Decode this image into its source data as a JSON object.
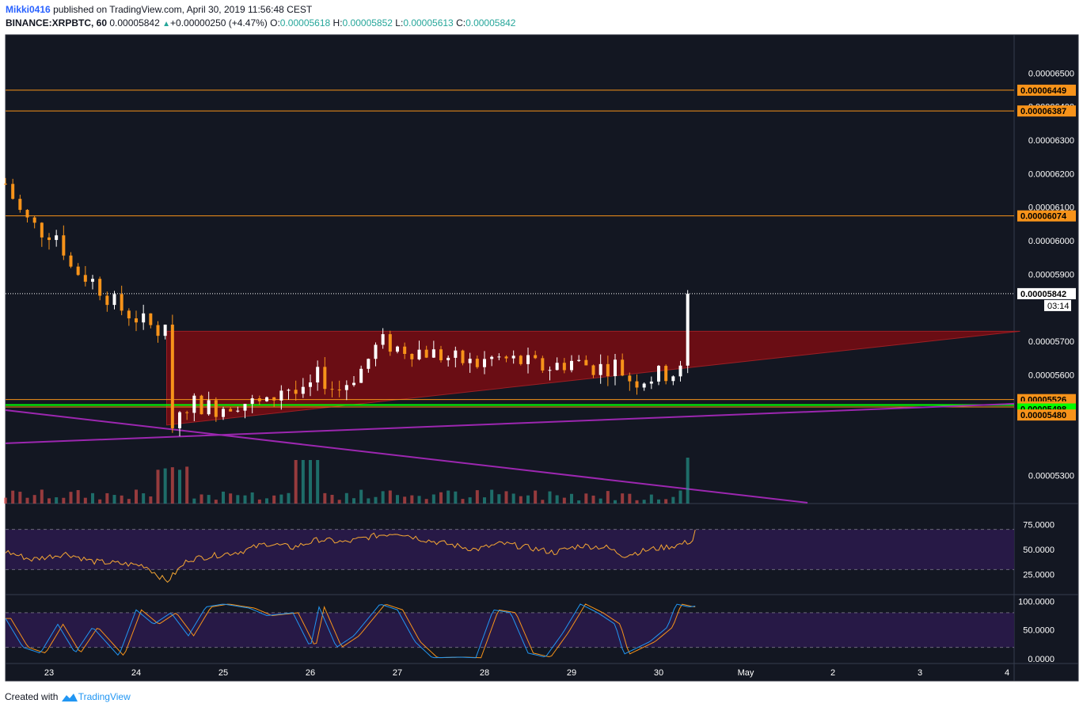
{
  "header": {
    "author": "Mikki0416",
    "published": "published on TradingView.com, April 30, 2019 11:56:48 CEST",
    "symbol": "BINANCE:XRPBTC, 60",
    "last": "0.00005842",
    "change": "+0.00000250 (+4.47%)",
    "o_label": "O:",
    "o_value": "0.00005618",
    "h_label": "H:",
    "h_value": "0.00005852",
    "l_label": "L:",
    "l_value": "0.00005613",
    "c_label": "C:",
    "c_value": "0.00005842"
  },
  "footer": {
    "created_with": "Created with",
    "brand": "TradingView"
  },
  "colors": {
    "background": "#131722",
    "up_candle": "#ffffff",
    "down_candle": "#f7931a",
    "resistance": "#f7931a",
    "support_green": "#00ff00",
    "trend_purple": "#9c27b0",
    "triangle_fill": "#7a0c12",
    "rsi_line": "#f7a833",
    "stoch_k": "#2196f3",
    "stoch_d": "#f7931a",
    "vol_up": "#26a69a",
    "vol_down": "#ef5350"
  },
  "chart_data": [
    {
      "type": "candlestick",
      "title": "BINANCE:XRPBTC, 60",
      "x_ticks": [
        "23",
        "24",
        "25",
        "26",
        "27",
        "28",
        "29",
        "30",
        "May",
        "2",
        "3",
        "4"
      ],
      "y_ticks": [
        "0.00006500",
        "0.00006400",
        "0.00006300",
        "0.00006200",
        "0.00006100",
        "0.00006000",
        "0.00005900",
        "0.00005700",
        "0.00005600",
        "0.00005300"
      ],
      "ylim": [
        5.23e-05,
        6.6e-05
      ],
      "price_labels": [
        {
          "value": 6.449e-05,
          "label": "0.00006449",
          "color": "#f7931a"
        },
        {
          "value": 6.387e-05,
          "label": "0.00006387",
          "color": "#f7931a"
        },
        {
          "value": 6.074e-05,
          "label": "0.00006074",
          "color": "#f7931a"
        },
        {
          "value": 5.842e-05,
          "label": "0.00005842",
          "color": "#ffffff",
          "countdown": "03:14"
        },
        {
          "value": 5.526e-05,
          "label": "0.00005526",
          "color": "#f7931a"
        },
        {
          "value": 5.504e-05,
          "label": "0.00005504",
          "color": "#f7931a"
        },
        {
          "value": 5.498e-05,
          "label": "0.00005498",
          "color": "#00ff00"
        },
        {
          "value": 5.48e-05,
          "label": "0.00005480",
          "color": "#f7931a"
        }
      ],
      "horizontal_lines": [
        6.449e-05,
        6.387e-05,
        6.074e-05,
        5.526e-05,
        5.504e-05
      ],
      "green_line": 5.51e-05,
      "triangle": {
        "start_day": 24.35,
        "end_day": 34.15,
        "top": 5.73e-05,
        "apex": 5.73e-05,
        "bottom_start": 5.45e-05
      },
      "anchors_day_price": [
        [
          22.5,
          6.17e-05
        ],
        [
          22.7,
          6.07e-05
        ],
        [
          22.9,
          6.03e-05
        ],
        [
          23.1,
          6.02e-05
        ],
        [
          23.25,
          5.92e-05
        ],
        [
          23.5,
          5.88e-05
        ],
        [
          23.8,
          5.8e-05
        ],
        [
          24.0,
          5.77e-05
        ],
        [
          24.2,
          5.74e-05
        ],
        [
          24.35,
          5.72e-05
        ],
        [
          24.4,
          5.46e-05
        ],
        [
          24.6,
          5.52e-05
        ],
        [
          24.9,
          5.5e-05
        ],
        [
          25.2,
          5.52e-05
        ],
        [
          25.5,
          5.51e-05
        ],
        [
          25.7,
          5.57e-05
        ],
        [
          25.9,
          5.53e-05
        ],
        [
          26.1,
          5.6e-05
        ],
        [
          26.3,
          5.55e-05
        ],
        [
          26.6,
          5.62e-05
        ],
        [
          26.8,
          5.7e-05
        ],
        [
          27.0,
          5.68e-05
        ],
        [
          27.3,
          5.67e-05
        ],
        [
          27.6,
          5.65e-05
        ],
        [
          27.9,
          5.63e-05
        ],
        [
          28.1,
          5.65e-05
        ],
        [
          28.4,
          5.64e-05
        ],
        [
          28.7,
          5.62e-05
        ],
        [
          29.0,
          5.64e-05
        ],
        [
          29.3,
          5.62e-05
        ],
        [
          29.5,
          5.63e-05
        ],
        [
          29.7,
          5.58e-05
        ],
        [
          30.0,
          5.6e-05
        ],
        [
          30.3,
          5.61e-05
        ],
        [
          30.4,
          5.62e-05
        ],
        [
          30.45,
          5.842e-05
        ]
      ],
      "last_price": 5.842e-05
    },
    {
      "type": "line",
      "title": "RSI",
      "y_ticks": [
        "75.0000",
        "50.0000",
        "25.0000"
      ],
      "ylim": [
        5,
        95
      ],
      "bands": [
        70,
        30
      ],
      "anchors_day_value": [
        [
          22.5,
          48
        ],
        [
          22.8,
          40
        ],
        [
          23.2,
          46
        ],
        [
          23.5,
          38
        ],
        [
          23.8,
          36
        ],
        [
          24.1,
          34
        ],
        [
          24.35,
          18
        ],
        [
          24.6,
          40
        ],
        [
          24.9,
          44
        ],
        [
          25.2,
          48
        ],
        [
          25.5,
          56
        ],
        [
          25.8,
          52
        ],
        [
          26.1,
          60
        ],
        [
          26.4,
          57
        ],
        [
          26.7,
          63
        ],
        [
          27.0,
          67
        ],
        [
          27.3,
          60
        ],
        [
          27.6,
          55
        ],
        [
          27.9,
          50
        ],
        [
          28.2,
          56
        ],
        [
          28.5,
          52
        ],
        [
          28.8,
          47
        ],
        [
          29.1,
          54
        ],
        [
          29.4,
          52
        ],
        [
          29.6,
          44
        ],
        [
          29.9,
          50
        ],
        [
          30.2,
          54
        ],
        [
          30.4,
          59
        ],
        [
          30.45,
          87
        ]
      ]
    },
    {
      "type": "line",
      "title": "Stoch RSI",
      "y_ticks": [
        "100.0000",
        "50.0000",
        "0.0000"
      ],
      "ylim": [
        -8,
        110
      ],
      "bands": [
        80,
        20
      ],
      "series": [
        {
          "anchors_day_value": [
            [
              22.5,
              70
            ],
            [
              22.7,
              20
            ],
            [
              22.9,
              10
            ],
            [
              23.1,
              60
            ],
            [
              23.3,
              10
            ],
            [
              23.5,
              55
            ],
            [
              23.8,
              5
            ],
            [
              24.0,
              85
            ],
            [
              24.2,
              60
            ],
            [
              24.4,
              80
            ],
            [
              24.6,
              40
            ],
            [
              24.8,
              90
            ],
            [
              25.0,
              95
            ],
            [
              25.3,
              88
            ],
            [
              25.5,
              75
            ],
            [
              25.8,
              80
            ],
            [
              26.0,
              20
            ],
            [
              26.1,
              90
            ],
            [
              26.3,
              20
            ],
            [
              26.5,
              40
            ],
            [
              26.8,
              95
            ],
            [
              27.0,
              85
            ],
            [
              27.2,
              30
            ],
            [
              27.4,
              2
            ],
            [
              27.7,
              3
            ],
            [
              27.9,
              2
            ],
            [
              28.1,
              85
            ],
            [
              28.3,
              80
            ],
            [
              28.5,
              10
            ],
            [
              28.7,
              3
            ],
            [
              28.9,
              45
            ],
            [
              29.1,
              95
            ],
            [
              29.3,
              80
            ],
            [
              29.5,
              60
            ],
            [
              29.6,
              8
            ],
            [
              29.9,
              30
            ],
            [
              30.1,
              55
            ],
            [
              30.2,
              95
            ],
            [
              30.35,
              90
            ],
            [
              30.45,
              92
            ]
          ]
        }
      ]
    }
  ]
}
